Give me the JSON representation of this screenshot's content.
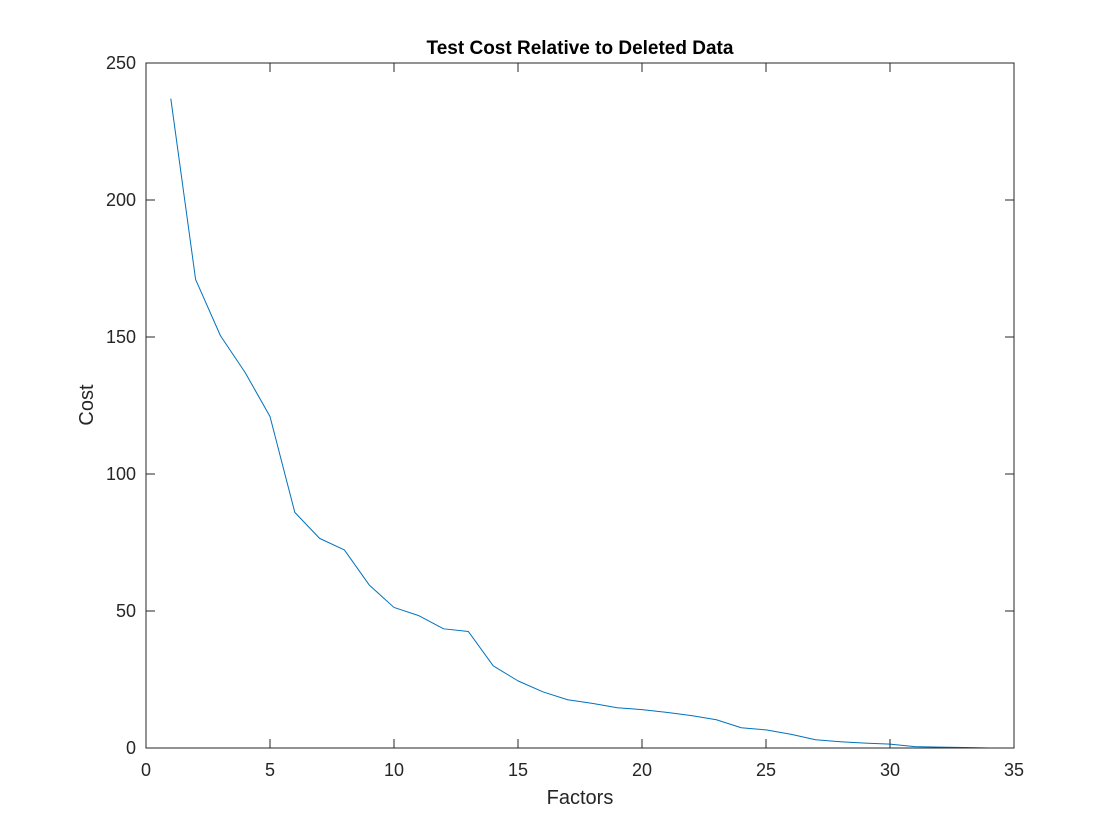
{
  "chart_data": {
    "type": "line",
    "title": "Test Cost Relative to Deleted Data",
    "xlabel": "Factors",
    "ylabel": "Cost",
    "xlim": [
      0,
      35
    ],
    "ylim": [
      0,
      250
    ],
    "xticks": [
      0,
      5,
      10,
      15,
      20,
      25,
      30,
      35
    ],
    "yticks": [
      0,
      50,
      100,
      150,
      200,
      250
    ],
    "grid": false,
    "legend": "none",
    "series": [
      {
        "color": "#0072BD",
        "x": [
          1,
          2,
          3,
          4,
          5,
          6,
          7,
          8,
          9,
          10,
          11,
          12,
          13,
          14,
          15,
          16,
          17,
          18,
          19,
          20,
          21,
          22,
          23,
          24,
          25,
          26,
          27,
          28,
          29,
          30,
          31,
          32,
          33,
          34,
          35
        ],
        "y": [
          237,
          171,
          150.5,
          137,
          121,
          86,
          76.5,
          72.3,
          59.5,
          51.3,
          48.3,
          43.5,
          42.5,
          30,
          24.5,
          20.5,
          17.6,
          16.3,
          14.7,
          14,
          13,
          11.8,
          10.3,
          7.4,
          6.6,
          5,
          3,
          2.3,
          1.8,
          1.4,
          0.5,
          0.3,
          0.2,
          0,
          0
        ]
      },
      {
        "color": "#A2142F",
        "x": [
          1,
          35
        ],
        "y": [
          0,
          0
        ]
      }
    ]
  }
}
